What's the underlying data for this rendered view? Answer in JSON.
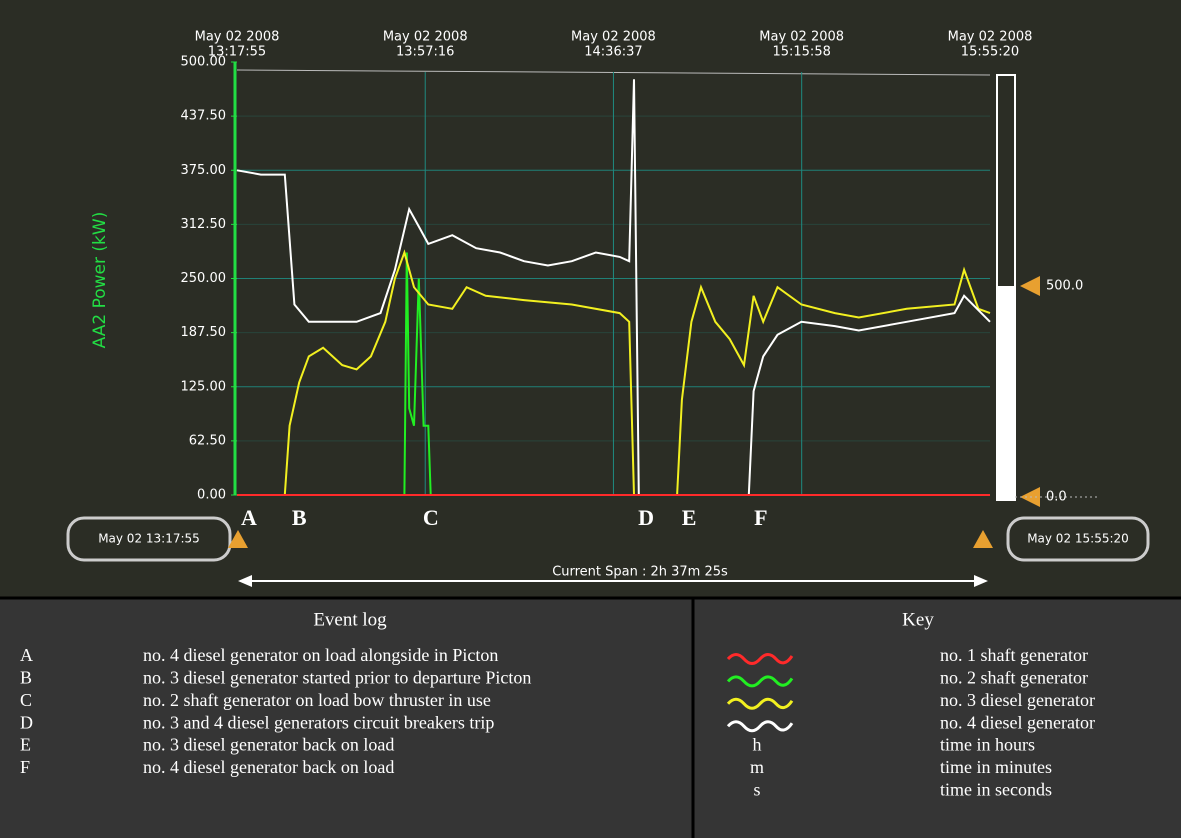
{
  "chart_data": {
    "type": "line",
    "y_label": "AA2 Power (kW)",
    "ylim": [
      0,
      500
    ],
    "yticks": [
      {
        "value": 0,
        "label": "0.00"
      },
      {
        "value": 62.5,
        "label": "62.50"
      },
      {
        "value": 125,
        "label": "125.00"
      },
      {
        "value": 187.5,
        "label": "187.50"
      },
      {
        "value": 250,
        "label": "250.00"
      },
      {
        "value": 312.5,
        "label": "312.50"
      },
      {
        "value": 375,
        "label": "375.00"
      },
      {
        "value": 437.5,
        "label": "437.50"
      },
      {
        "value": 500,
        "label": "500.00"
      }
    ],
    "xlim": [
      0,
      157.42
    ],
    "xticks": [
      {
        "value": 0,
        "label": [
          "May 02 2008",
          "13:17:55"
        ]
      },
      {
        "value": 39.35,
        "label": [
          "May 02 2008",
          "13:57:16"
        ]
      },
      {
        "value": 78.7,
        "label": [
          "May 02 2008",
          "14:36:37"
        ]
      },
      {
        "value": 118.05,
        "label": [
          "May 02 2008",
          "15:15:58"
        ]
      },
      {
        "value": 157.42,
        "label": [
          "May 02 2008",
          "15:55:20"
        ]
      }
    ],
    "grid": true,
    "series": [
      {
        "name": "no. 1 shaft generator",
        "color": "#ff2a2a",
        "x": [
          0,
          157.42
        ],
        "values": [
          0,
          0
        ]
      },
      {
        "name": "no. 2 shaft generator",
        "color": "#22ee22",
        "x": [
          0,
          35,
          35.5,
          36,
          37,
          38,
          39,
          40,
          40.5,
          157.42
        ],
        "values": [
          0,
          0,
          280,
          100,
          80,
          250,
          80,
          80,
          0,
          0
        ]
      },
      {
        "name": "no. 3 diesel generator",
        "color": "#f2f020",
        "x": [
          0,
          10,
          11,
          13,
          15,
          18,
          22,
          25,
          28,
          31,
          33,
          35,
          37,
          40,
          45,
          48,
          52,
          60,
          70,
          80,
          82,
          83,
          92,
          93,
          95,
          97,
          100,
          103,
          106,
          108,
          110,
          113,
          118,
          125,
          130,
          140,
          150,
          152,
          155,
          157.42
        ],
        "values": [
          0,
          0,
          80,
          130,
          160,
          170,
          150,
          145,
          160,
          200,
          250,
          280,
          240,
          220,
          215,
          240,
          230,
          225,
          220,
          210,
          200,
          0,
          0,
          110,
          200,
          240,
          200,
          180,
          150,
          230,
          200,
          240,
          220,
          210,
          205,
          215,
          220,
          260,
          215,
          210
        ]
      },
      {
        "name": "no. 4 diesel generator",
        "color": "#ffffff",
        "x": [
          0,
          5,
          10,
          12,
          15,
          25,
          30,
          33,
          36,
          38,
          40,
          45,
          50,
          55,
          60,
          65,
          70,
          75,
          80,
          82,
          83,
          84,
          107,
          108,
          110,
          113,
          118,
          125,
          130,
          140,
          150,
          152,
          157.42
        ],
        "values": [
          375,
          370,
          370,
          220,
          200,
          200,
          210,
          260,
          330,
          310,
          290,
          300,
          285,
          280,
          270,
          265,
          270,
          280,
          275,
          270,
          480,
          0,
          0,
          120,
          160,
          185,
          200,
          195,
          190,
          200,
          210,
          230,
          200
        ]
      }
    ],
    "events": [
      {
        "label": "A",
        "x": 0,
        "description": "no. 4 diesel generator on load alongside in Picton"
      },
      {
        "label": "B",
        "x": 10.5,
        "description": "no. 3 diesel generator started prior to departure Picton"
      },
      {
        "label": "C",
        "x": 38,
        "description": "no. 2 shaft generator on load bow thruster in use"
      },
      {
        "label": "D",
        "x": 83,
        "description": "no. 3 and 4 diesel generators circuit breakers trip"
      },
      {
        "label": "E",
        "x": 92,
        "description": "no. 3 diesel generator back on load"
      },
      {
        "label": "F",
        "x": 107,
        "description": "no. 4 diesel generator back on load"
      }
    ],
    "start_label": "May 02 13:17:55",
    "end_label": "May 02 15:55:20",
    "span_label": "Current Span : 2h 37m 25s",
    "gauge_labels": [
      "500.0",
      "0.0"
    ]
  },
  "event_log": {
    "title": "Event log"
  },
  "key": {
    "title": "Key",
    "units": [
      [
        "h",
        "time in hours"
      ],
      [
        "m",
        "time in minutes"
      ],
      [
        "s",
        "time in seconds"
      ]
    ]
  }
}
